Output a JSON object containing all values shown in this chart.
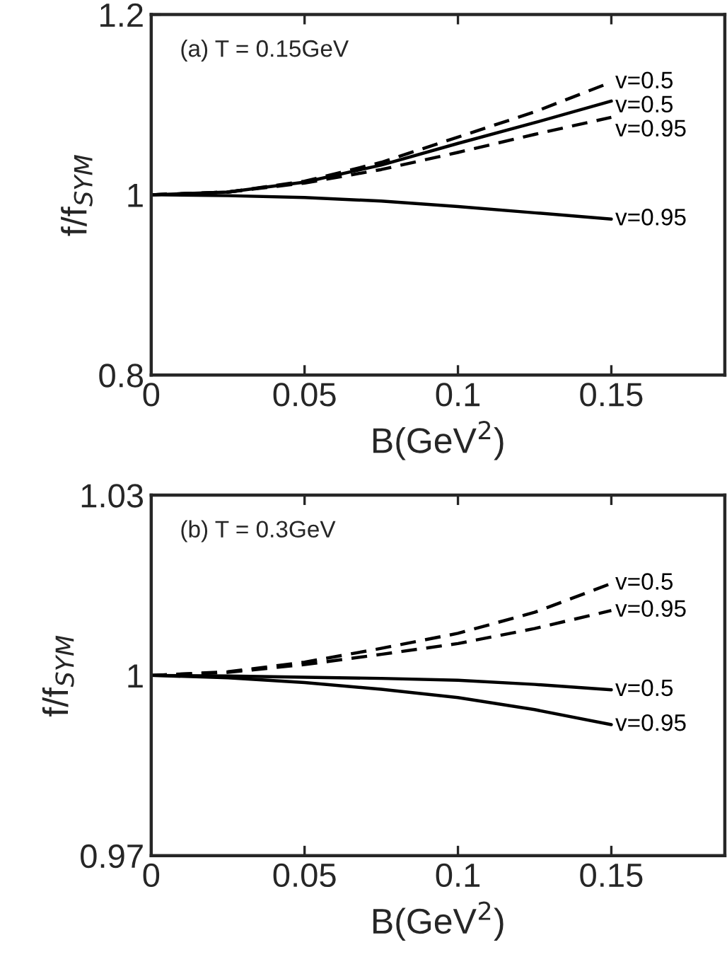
{
  "chart_data": [
    {
      "type": "line",
      "xlabel": "B(GeV$^{2}$)",
      "ylabel": "f/f$_{SYM}$",
      "annotations": [
        "(a) T = 0.15GeV"
      ],
      "x": [
        0,
        0.025,
        0.05,
        0.075,
        0.1,
        0.125,
        0.15
      ],
      "xlim": [
        0,
        0.187
      ],
      "xticks": [
        0,
        0.05,
        0.1,
        0.15
      ],
      "ylim": [
        0.8,
        1.2
      ],
      "yticks": [
        0.8,
        1,
        1.2
      ],
      "grid": false,
      "legend": false,
      "marker": "none",
      "series": [
        {
          "name": "v=0.5",
          "color": "#000000",
          "line_style": "dashed",
          "values": [
            1,
            1.003,
            1.015,
            1.036,
            1.064,
            1.092,
            1.125
          ]
        },
        {
          "name": "v=0.5",
          "color": "#000000",
          "line_style": "solid",
          "values": [
            1,
            1.003,
            1.014,
            1.033,
            1.057,
            1.08,
            1.104
          ]
        },
        {
          "name": "v=0.95",
          "color": "#000000",
          "line_style": "dashed",
          "values": [
            1,
            1.003,
            1.013,
            1.028,
            1.047,
            1.067,
            1.086
          ]
        },
        {
          "name": "v=0.95",
          "color": "#000000",
          "line_style": "solid",
          "values": [
            1,
            0.999,
            0.997,
            0.993,
            0.987,
            0.98,
            0.973
          ]
        }
      ]
    },
    {
      "type": "line",
      "xlabel": "B(GeV$^{2}$)",
      "ylabel": "f/f$_{SYM}$",
      "annotations": [
        "(b) T = 0.3GeV"
      ],
      "x": [
        0,
        0.025,
        0.05,
        0.075,
        0.1,
        0.125,
        0.15
      ],
      "xlim": [
        0,
        0.187
      ],
      "xticks": [
        0,
        0.05,
        0.1,
        0.15
      ],
      "ylim": [
        0.97,
        1.03
      ],
      "yticks": [
        0.97,
        1,
        1.03
      ],
      "grid": false,
      "legend": false,
      "marker": "none",
      "series": [
        {
          "name": "v=0.5",
          "color": "#000000",
          "line_style": "dashed",
          "values": [
            1,
            1.0006,
            1.0022,
            1.0045,
            1.007,
            1.0105,
            1.0153
          ]
        },
        {
          "name": "v=0.95",
          "color": "#000000",
          "line_style": "dashed",
          "values": [
            1,
            1.0005,
            1.0018,
            1.0035,
            1.0053,
            1.0078,
            1.0108
          ]
        },
        {
          "name": "v=0.5",
          "color": "#000000",
          "line_style": "solid",
          "values": [
            1,
            0.9999,
            0.9997,
            0.9995,
            0.9992,
            0.9985,
            0.9976
          ]
        },
        {
          "name": "v=0.95",
          "color": "#000000",
          "line_style": "solid",
          "values": [
            1,
            0.9996,
            0.9988,
            0.9977,
            0.9963,
            0.9943,
            0.9918
          ]
        }
      ]
    }
  ]
}
